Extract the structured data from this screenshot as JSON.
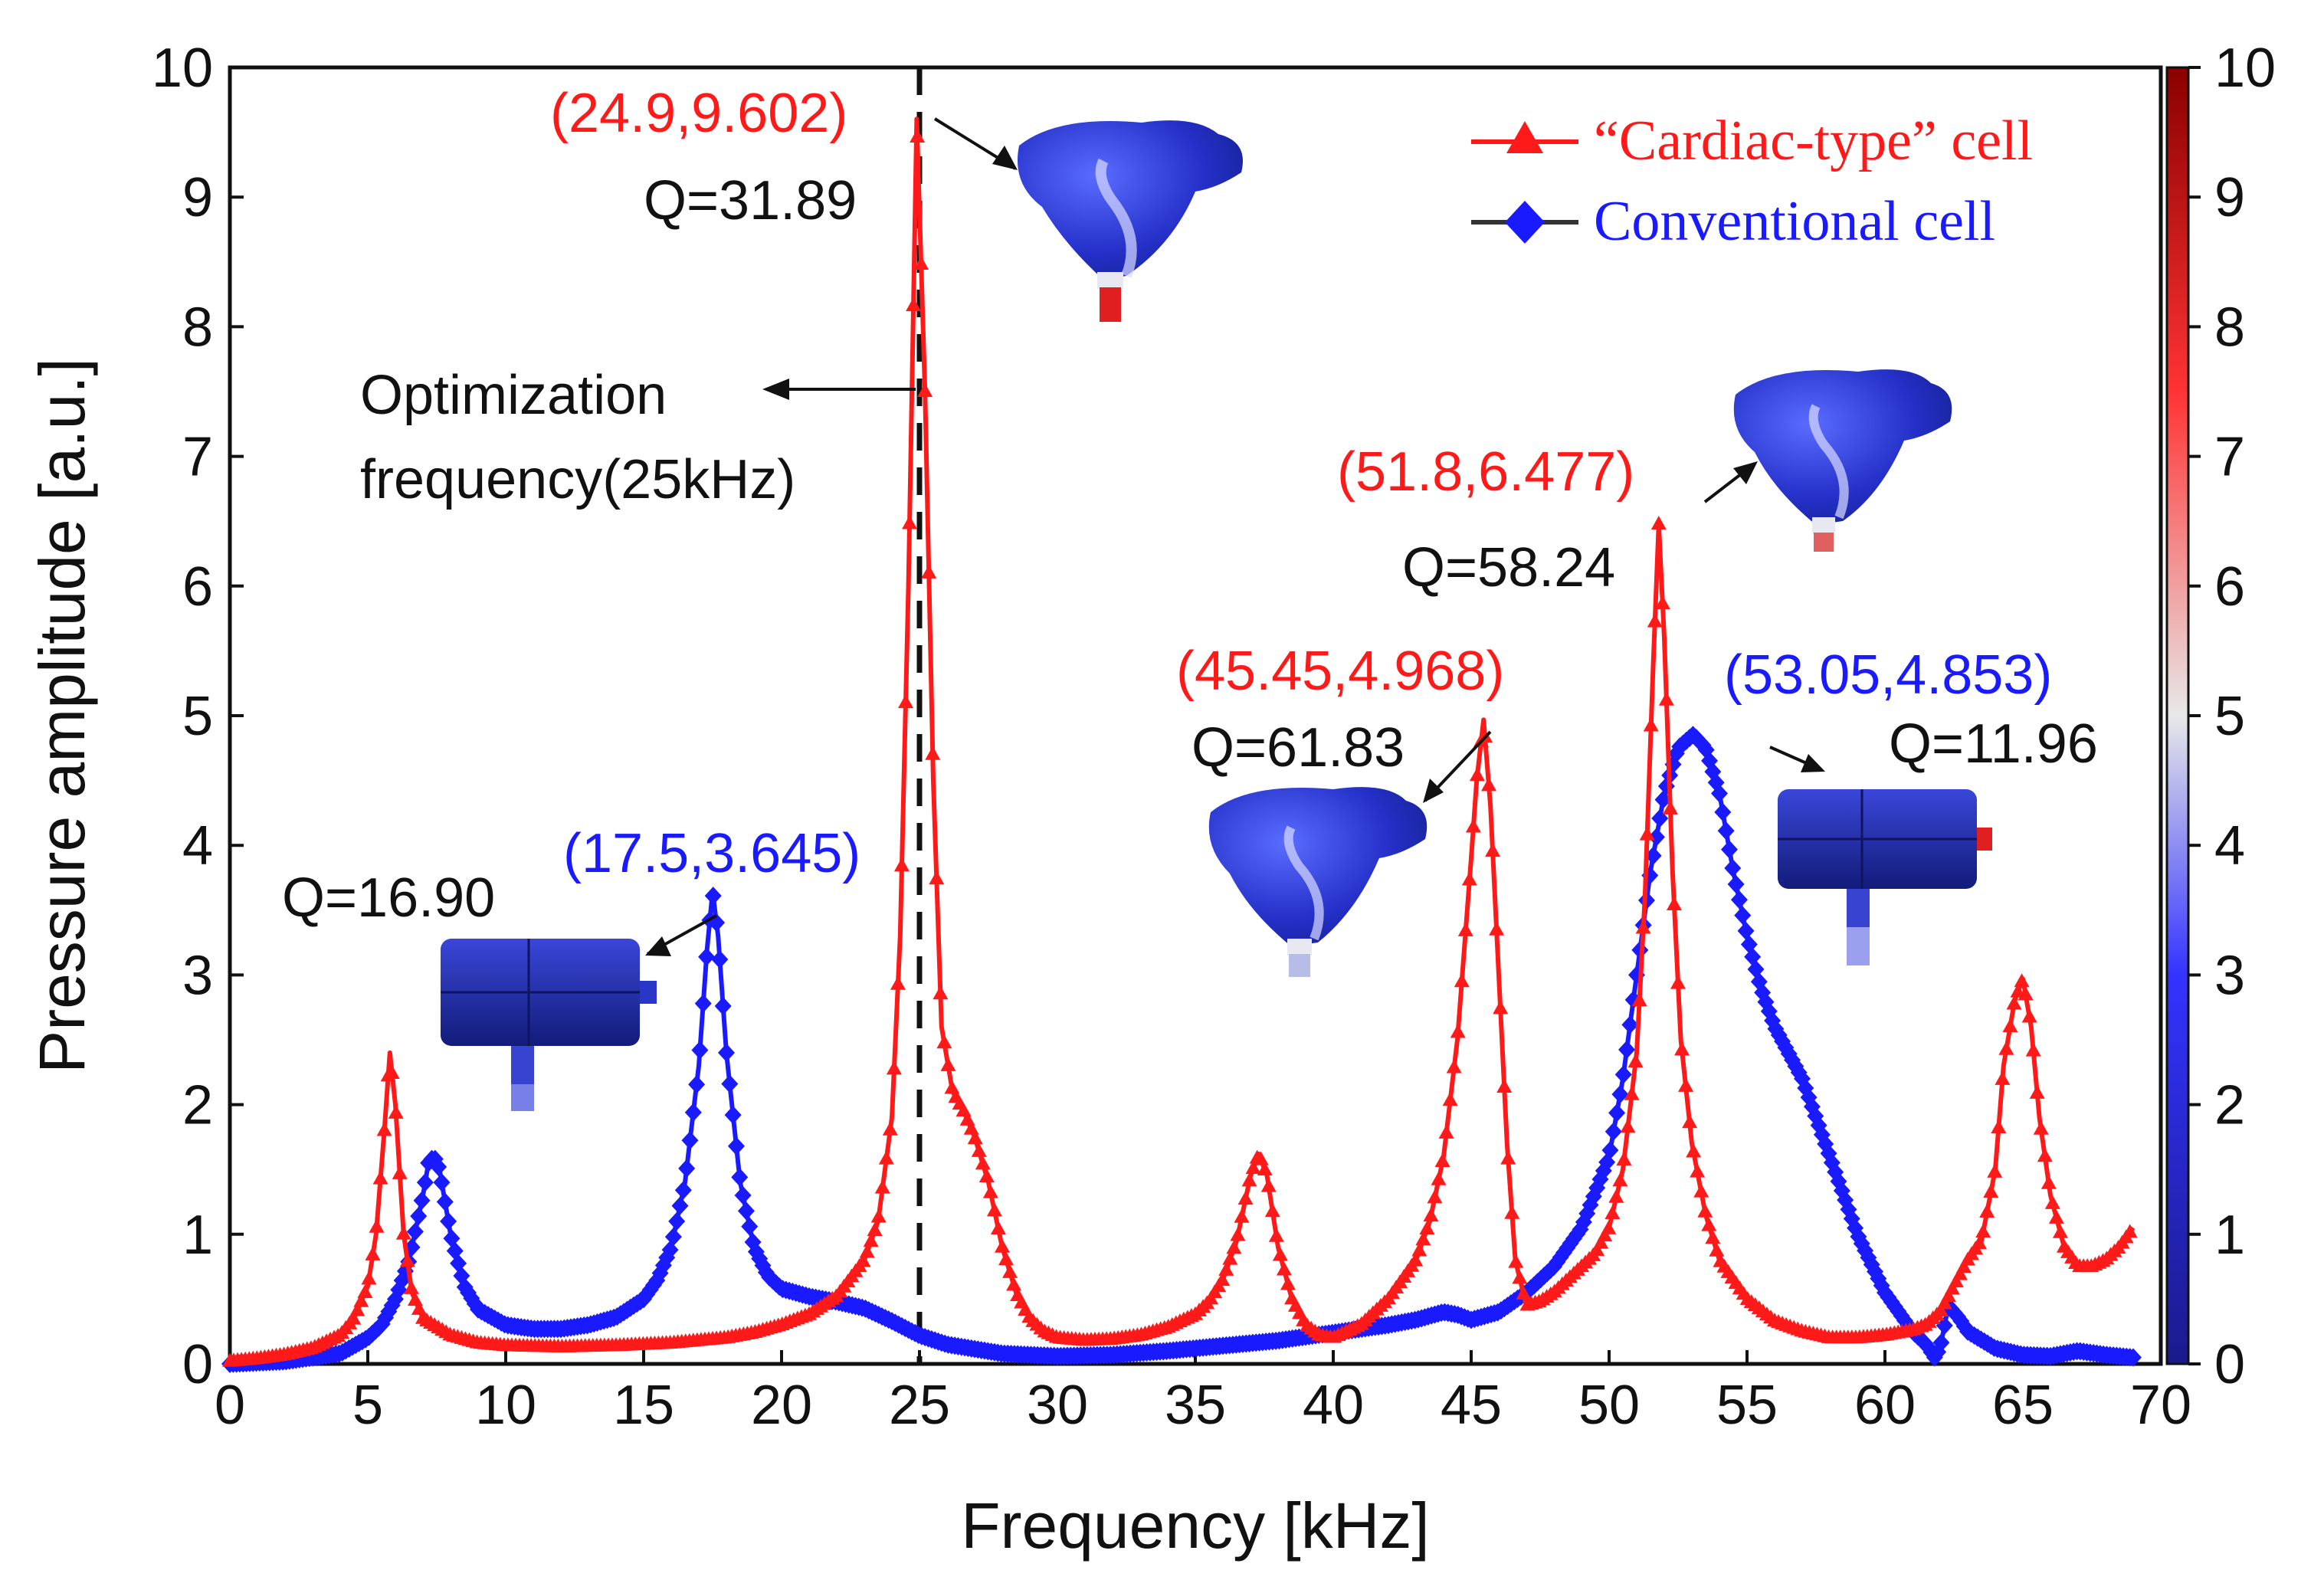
{
  "chart_data": {
    "type": "line",
    "xlabel": "Frequency [kHz]",
    "ylabel": "Pressure amplitude [a.u.]",
    "xlim": [
      0,
      70
    ],
    "ylim": [
      0,
      10
    ],
    "xticks": [
      "0",
      "5",
      "10",
      "15",
      "20",
      "25",
      "30",
      "35",
      "40",
      "45",
      "50",
      "55",
      "60",
      "65",
      "70"
    ],
    "yticks": [
      "0",
      "1",
      "2",
      "3",
      "4",
      "5",
      "6",
      "7",
      "8",
      "9",
      "10"
    ],
    "colorbar": {
      "range": [
        0,
        10
      ],
      "ticks": [
        "0",
        "1",
        "2",
        "3",
        "4",
        "5",
        "6",
        "7",
        "8",
        "9",
        "10"
      ],
      "colors": [
        "#1a1a8c",
        "#3333ff",
        "#e8e8e8",
        "#ff3333",
        "#8b0000"
      ]
    },
    "optimization_line": {
      "x": 25,
      "label_line1": "Optimization",
      "label_line2": "frequency(25kHz)"
    },
    "series": [
      {
        "name": "“Cardiac-type” cell",
        "color": "#ff1a1a",
        "marker": "triangle",
        "x": [
          0,
          1,
          2,
          3,
          4,
          4.5,
          5,
          5.3,
          5.6,
          5.8,
          6.0,
          6.3,
          6.6,
          7,
          8,
          9,
          10,
          12,
          14,
          16,
          18,
          19,
          20,
          21,
          22,
          23,
          23.5,
          24,
          24.3,
          24.6,
          24.9,
          25.2,
          25.5,
          25.8,
          26.2,
          26.6,
          27,
          27.5,
          28,
          28.5,
          29,
          29.5,
          30,
          31,
          32,
          33,
          34,
          35,
          35.5,
          36,
          36.5,
          37,
          37.3,
          37.6,
          38,
          38.5,
          39,
          39.5,
          40,
          41,
          42,
          43,
          43.5,
          44,
          44.5,
          45,
          45.2,
          45.45,
          45.7,
          46,
          46.3,
          46.6,
          47,
          47.5,
          48,
          48.5,
          49,
          49.5,
          50,
          50.5,
          51,
          51.3,
          51.6,
          51.8,
          52,
          52.3,
          52.6,
          53,
          53.5,
          54,
          55,
          56,
          57,
          58,
          59,
          60,
          61,
          61.5,
          62,
          62.5,
          63,
          63.5,
          64,
          64.3,
          64.7,
          65,
          65.3,
          65.6,
          66,
          66.5,
          67,
          67.5,
          68,
          68.5,
          69
        ],
        "y": [
          0.02,
          0.04,
          0.07,
          0.12,
          0.22,
          0.35,
          0.6,
          1.0,
          1.8,
          2.4,
          2.0,
          1.0,
          0.55,
          0.35,
          0.22,
          0.16,
          0.14,
          0.13,
          0.14,
          0.16,
          0.2,
          0.24,
          0.3,
          0.38,
          0.52,
          0.8,
          1.1,
          1.9,
          3.3,
          6.0,
          9.602,
          7.5,
          4.5,
          2.6,
          2.1,
          1.95,
          1.75,
          1.4,
          0.9,
          0.55,
          0.35,
          0.25,
          0.2,
          0.18,
          0.19,
          0.22,
          0.28,
          0.38,
          0.48,
          0.65,
          0.95,
          1.45,
          1.62,
          1.45,
          0.9,
          0.5,
          0.3,
          0.22,
          0.2,
          0.3,
          0.5,
          0.8,
          1.1,
          1.6,
          2.5,
          3.9,
          4.5,
          4.968,
          4.3,
          3.0,
          1.7,
          0.8,
          0.45,
          0.48,
          0.55,
          0.65,
          0.75,
          0.85,
          1.05,
          1.5,
          2.4,
          3.6,
          5.4,
          6.477,
          5.6,
          3.8,
          2.5,
          1.7,
          1.15,
          0.8,
          0.5,
          0.33,
          0.25,
          0.2,
          0.2,
          0.22,
          0.26,
          0.3,
          0.4,
          0.6,
          0.8,
          0.95,
          1.5,
          2.3,
          2.8,
          2.97,
          2.6,
          1.9,
          1.3,
          0.9,
          0.75,
          0.75,
          0.8,
          0.9,
          1.05
        ]
      },
      {
        "name": "Conventional cell",
        "color": "#1a1aff",
        "marker": "diamond",
        "x": [
          0,
          2,
          4,
          5,
          5.5,
          6,
          6.5,
          7,
          7.2,
          7.4,
          7.6,
          8,
          8.5,
          9,
          10,
          11,
          12,
          13,
          14,
          15,
          15.5,
          16,
          16.5,
          17,
          17.3,
          17.5,
          17.7,
          18,
          18.5,
          19,
          19.5,
          20,
          21,
          22,
          23,
          24,
          25,
          26,
          28,
          30,
          32,
          34,
          36,
          38,
          40,
          42,
          43,
          44,
          44.5,
          45,
          46,
          47,
          48,
          49,
          50,
          50.5,
          51,
          51.5,
          52,
          52.5,
          53.05,
          53.5,
          54,
          54.5,
          55,
          55.5,
          56,
          57,
          58,
          59,
          60,
          61,
          61.5,
          61.8,
          62,
          62.3,
          62.7,
          63,
          64,
          65,
          66,
          67,
          68,
          69
        ],
        "y": [
          0.0,
          0.02,
          0.08,
          0.2,
          0.3,
          0.5,
          0.8,
          1.3,
          1.55,
          1.6,
          1.5,
          1.0,
          0.6,
          0.42,
          0.3,
          0.27,
          0.27,
          0.3,
          0.36,
          0.5,
          0.65,
          0.9,
          1.4,
          2.3,
          3.2,
          3.645,
          3.3,
          2.4,
          1.4,
          0.9,
          0.68,
          0.58,
          0.52,
          0.48,
          0.43,
          0.33,
          0.22,
          0.15,
          0.08,
          0.06,
          0.07,
          0.1,
          0.14,
          0.18,
          0.24,
          0.3,
          0.34,
          0.4,
          0.38,
          0.34,
          0.4,
          0.55,
          0.75,
          1.05,
          1.6,
          2.2,
          3.0,
          3.8,
          4.4,
          4.75,
          4.853,
          4.75,
          4.4,
          3.8,
          3.3,
          2.9,
          2.6,
          2.2,
          1.6,
          1.0,
          0.55,
          0.25,
          0.15,
          0.05,
          0.12,
          0.45,
          0.35,
          0.25,
          0.12,
          0.07,
          0.06,
          0.1,
          0.07,
          0.05
        ]
      }
    ],
    "annotations": [
      {
        "coord": "(24.9,9.602)",
        "color": "#ff1a1a",
        "q": "Q=31.89"
      },
      {
        "coord": "(17.5,3.645)",
        "color": "#1a1aff",
        "q": "Q=16.90"
      },
      {
        "coord": "(45.45,4.968)",
        "color": "#ff1a1a",
        "q": "Q=61.83"
      },
      {
        "coord": "(51.8,6.477)",
        "color": "#ff1a1a",
        "q": "Q=58.24"
      },
      {
        "coord": "(53.05,4.853)",
        "color": "#1a1aff",
        "q": "Q=11.96"
      }
    ],
    "insets": [
      {
        "kind": "cardiac"
      },
      {
        "kind": "cardiac"
      },
      {
        "kind": "cardiac"
      },
      {
        "kind": "conventional"
      },
      {
        "kind": "conventional"
      }
    ]
  }
}
